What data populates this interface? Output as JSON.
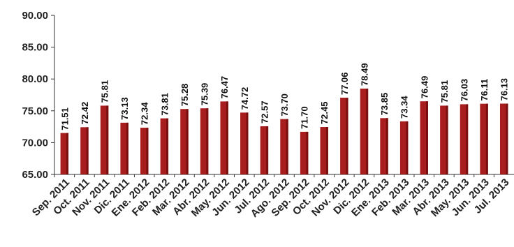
{
  "chart_data": {
    "type": "bar",
    "categories": [
      "Sep. 2011",
      "Oct. 2011",
      "Nov. 2011",
      "Dic. 2011",
      "Ene. 2012",
      "Feb. 2012",
      "Mar. 2012",
      "Abr. 2012",
      "May. 2012",
      "Jun. 2012",
      "Jul. 2012",
      "Ago. 2012",
      "Sep. 2012",
      "Oct. 2012",
      "Nov. 2012",
      "Dic. 2012",
      "Ene. 2013",
      "Feb. 2013",
      "Mar. 2013",
      "Abr. 2013",
      "May. 2013",
      "Jun. 2013",
      "Jul. 2013"
    ],
    "values": [
      71.51,
      72.42,
      75.81,
      73.13,
      72.34,
      73.81,
      75.28,
      75.39,
      76.47,
      74.72,
      72.57,
      73.7,
      71.7,
      72.45,
      77.06,
      78.49,
      73.85,
      73.34,
      76.49,
      75.81,
      76.03,
      76.11,
      76.13
    ],
    "value_labels": [
      "71.51",
      "72.42",
      "75.81",
      "73.13",
      "72.34",
      "73.81",
      "75.28",
      "75.39",
      "76.47",
      "74.72",
      "72.57",
      "73.70",
      "71.70",
      "72.45",
      "77.06",
      "78.49",
      "73.85",
      "73.34",
      "76.49",
      "75.81",
      "76.03",
      "76.11",
      "76.13"
    ],
    "ylim": [
      65.0,
      90.0
    ],
    "yticks": [
      65.0,
      70.0,
      75.0,
      80.0,
      85.0,
      90.0
    ],
    "ytick_labels": [
      "65.00",
      "70.00",
      "75.00",
      "80.00",
      "85.00",
      "90.00"
    ],
    "title": "",
    "xlabel": "",
    "ylabel": "",
    "grid": false,
    "colors": {
      "bar": "#a81d1d",
      "bar_dark": "#7a0f0f",
      "axis": "#333333"
    }
  }
}
